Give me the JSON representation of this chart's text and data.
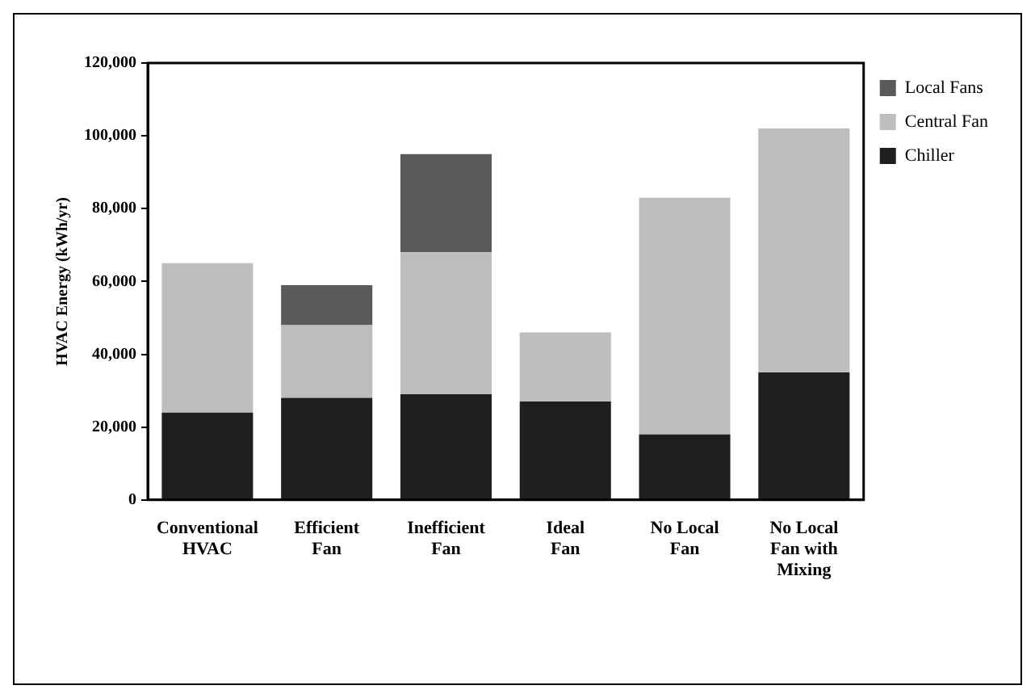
{
  "chart_data": {
    "type": "bar",
    "stacked": true,
    "ylabel": "HVAC Energy (kWh/yr)",
    "categories": [
      "Conventional HVAC",
      "Efficient Fan",
      "Inefficient Fan",
      "Ideal Fan",
      "No Local Fan",
      "No Local Fan with Mixing"
    ],
    "series": [
      {
        "name": "Chiller",
        "color": "#1f1f1f",
        "values": [
          24000,
          28000,
          29000,
          27000,
          18000,
          35000
        ]
      },
      {
        "name": "Central Fan",
        "color": "#bdbdbd",
        "values": [
          41000,
          20000,
          39000,
          19000,
          65000,
          67000
        ]
      },
      {
        "name": "Local Fans",
        "color": "#5a5a5a",
        "values": [
          0,
          11000,
          27000,
          0,
          0,
          0
        ]
      }
    ],
    "ylim": [
      0,
      120000
    ],
    "yticks": [
      {
        "value": 0,
        "label": "0"
      },
      {
        "value": 20000,
        "label": "20,000"
      },
      {
        "value": 40000,
        "label": "40,000"
      },
      {
        "value": 60000,
        "label": "60,000"
      },
      {
        "value": 80000,
        "label": "80,000"
      },
      {
        "value": 100000,
        "label": "100,000"
      },
      {
        "value": 120000,
        "label": "120,000"
      }
    ],
    "legend": "top right"
  }
}
